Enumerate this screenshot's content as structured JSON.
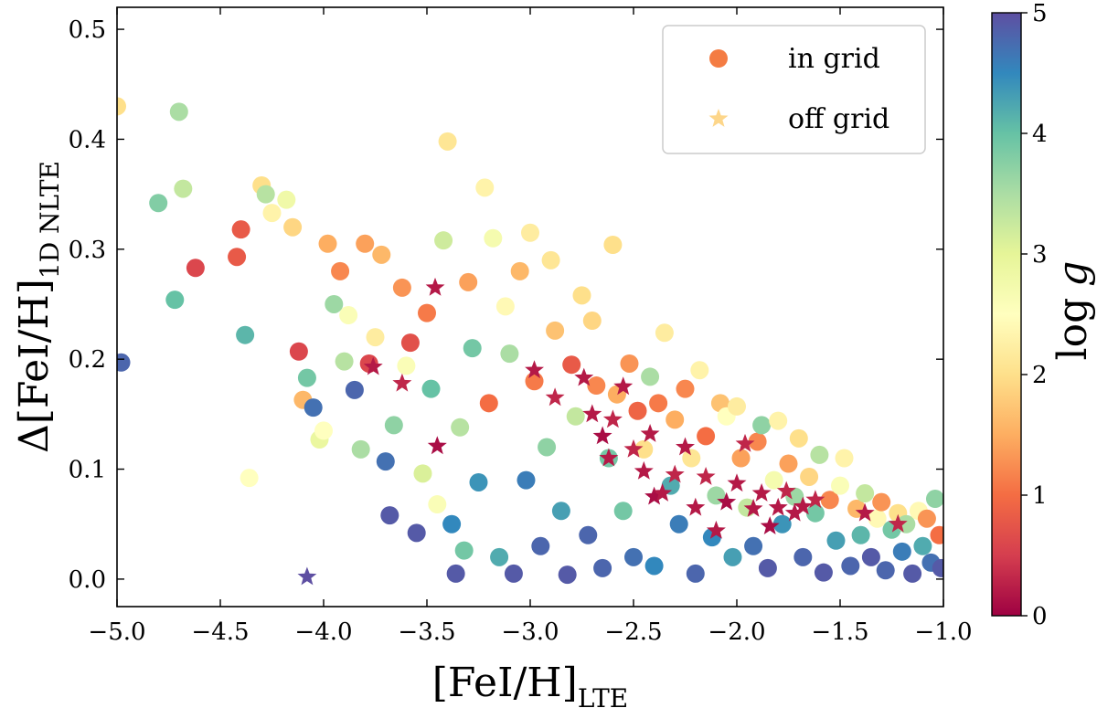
{
  "chart_data": {
    "type": "scatter",
    "title": "",
    "xlabel": {
      "main": "[FeI/H]",
      "sub": "LTE"
    },
    "ylabel": {
      "prefix": "Δ",
      "main": "[FeI/H]",
      "sub": "1D NLTE"
    },
    "xlim": [
      -5.0,
      -1.0
    ],
    "ylim": [
      -0.025,
      0.52
    ],
    "xticks": [
      -5.0,
      -4.5,
      -4.0,
      -3.5,
      -3.0,
      -2.5,
      -2.0,
      -1.5,
      -1.0
    ],
    "xtick_labels": [
      "−5.0",
      "−4.5",
      "−4.0",
      "−3.5",
      "−3.0",
      "−2.5",
      "−2.0",
      "−1.5",
      "−1.0"
    ],
    "yticks": [
      0.0,
      0.1,
      0.2,
      0.3,
      0.4,
      0.5
    ],
    "ytick_labels": [
      "0.0",
      "0.1",
      "0.2",
      "0.3",
      "0.4",
      "0.5"
    ],
    "grid": false,
    "legend": {
      "position": "top-right",
      "entries": [
        {
          "label": "in grid",
          "marker": "circle",
          "color": "#f47c43"
        },
        {
          "label": "off grid",
          "marker": "star",
          "color": "#fdd68a"
        }
      ]
    },
    "colorbar": {
      "label": "log g",
      "label_main": "log",
      "label_var": "g",
      "range": [
        0,
        5
      ],
      "ticks": [
        0,
        1,
        2,
        3,
        4,
        5
      ],
      "cmap": "Spectral",
      "stops": [
        "#9e0142",
        "#d53e4f",
        "#f46d43",
        "#fdae61",
        "#fee08b",
        "#ffffbf",
        "#e6f598",
        "#abdda4",
        "#66c2a5",
        "#3288bd",
        "#5e4fa2"
      ]
    },
    "series": [
      {
        "name": "in grid",
        "marker": "circle",
        "points": [
          [
            -5.0,
            0.43,
            2.0
          ],
          [
            -4.98,
            0.197,
            4.8
          ],
          [
            -4.8,
            0.342,
            3.8
          ],
          [
            -4.72,
            0.254,
            4.0
          ],
          [
            -4.7,
            0.425,
            3.5
          ],
          [
            -4.68,
            0.355,
            3.3
          ],
          [
            -4.62,
            0.283,
            0.6
          ],
          [
            -4.42,
            0.293,
            0.8
          ],
          [
            -4.4,
            0.318,
            0.8
          ],
          [
            -4.38,
            0.222,
            4.1
          ],
          [
            -4.36,
            0.092,
            2.5
          ],
          [
            -4.3,
            0.358,
            2.0
          ],
          [
            -4.28,
            0.35,
            3.4
          ],
          [
            -4.25,
            0.333,
            2.3
          ],
          [
            -4.18,
            0.345,
            2.8
          ],
          [
            -4.15,
            0.32,
            1.9
          ],
          [
            -4.12,
            0.207,
            0.6
          ],
          [
            -4.1,
            0.163,
            1.6
          ],
          [
            -4.08,
            0.183,
            3.9
          ],
          [
            -4.05,
            0.156,
            4.7
          ],
          [
            -4.02,
            0.127,
            2.9
          ],
          [
            -4.0,
            0.135,
            2.5
          ],
          [
            -3.98,
            0.305,
            1.5
          ],
          [
            -3.95,
            0.25,
            3.6
          ],
          [
            -3.92,
            0.28,
            1.2
          ],
          [
            -3.9,
            0.198,
            3.4
          ],
          [
            -3.88,
            0.24,
            2.6
          ],
          [
            -3.85,
            0.172,
            4.8
          ],
          [
            -3.82,
            0.118,
            3.5
          ],
          [
            -3.8,
            0.305,
            1.4
          ],
          [
            -3.78,
            0.196,
            0.6
          ],
          [
            -3.75,
            0.22,
            2.2
          ],
          [
            -3.72,
            0.295,
            1.6
          ],
          [
            -3.7,
            0.107,
            4.7
          ],
          [
            -3.68,
            0.058,
            4.9
          ],
          [
            -3.66,
            0.14,
            3.7
          ],
          [
            -3.62,
            0.265,
            1.3
          ],
          [
            -3.6,
            0.194,
            2.6
          ],
          [
            -3.58,
            0.215,
            0.7
          ],
          [
            -3.55,
            0.042,
            4.9
          ],
          [
            -3.52,
            0.096,
            3.1
          ],
          [
            -3.5,
            0.242,
            1.1
          ],
          [
            -3.48,
            0.173,
            4.0
          ],
          [
            -3.45,
            0.068,
            2.6
          ],
          [
            -3.42,
            0.308,
            3.2
          ],
          [
            -3.4,
            0.398,
            2.1
          ],
          [
            -3.38,
            0.05,
            4.5
          ],
          [
            -3.36,
            0.005,
            4.9
          ],
          [
            -3.34,
            0.138,
            3.4
          ],
          [
            -3.32,
            0.026,
            3.9
          ],
          [
            -3.3,
            0.27,
            1.4
          ],
          [
            -3.28,
            0.21,
            3.9
          ],
          [
            -3.25,
            0.088,
            4.4
          ],
          [
            -3.22,
            0.356,
            2.3
          ],
          [
            -3.2,
            0.16,
            1.0
          ],
          [
            -3.18,
            0.31,
            2.7
          ],
          [
            -3.15,
            0.02,
            4.2
          ],
          [
            -3.12,
            0.248,
            2.4
          ],
          [
            -3.1,
            0.205,
            3.5
          ],
          [
            -3.08,
            0.005,
            4.9
          ],
          [
            -3.05,
            0.28,
            1.6
          ],
          [
            -3.02,
            0.09,
            4.6
          ],
          [
            -3.0,
            0.315,
            2.2
          ],
          [
            -2.98,
            0.18,
            1.1
          ],
          [
            -2.95,
            0.03,
            4.8
          ],
          [
            -2.92,
            0.12,
            3.7
          ],
          [
            -2.9,
            0.29,
            2.1
          ],
          [
            -2.88,
            0.226,
            1.7
          ],
          [
            -2.85,
            0.062,
            4.3
          ],
          [
            -2.82,
            0.004,
            4.9
          ],
          [
            -2.8,
            0.195,
            0.8
          ],
          [
            -2.78,
            0.148,
            3.3
          ],
          [
            -2.75,
            0.258,
            2.0
          ],
          [
            -2.72,
            0.04,
            4.8
          ],
          [
            -2.7,
            0.235,
            1.9
          ],
          [
            -2.68,
            0.176,
            1.2
          ],
          [
            -2.65,
            0.01,
            4.8
          ],
          [
            -2.62,
            0.11,
            3.9
          ],
          [
            -2.6,
            0.304,
            2.0
          ],
          [
            -2.58,
            0.168,
            1.5
          ],
          [
            -2.55,
            0.062,
            3.9
          ],
          [
            -2.52,
            0.196,
            1.3
          ],
          [
            -2.5,
            0.02,
            4.7
          ],
          [
            -2.48,
            0.153,
            0.9
          ],
          [
            -2.45,
            0.118,
            2.0
          ],
          [
            -2.42,
            0.184,
            3.5
          ],
          [
            -2.4,
            0.012,
            4.5
          ],
          [
            -2.38,
            0.16,
            1.1
          ],
          [
            -2.35,
            0.224,
            2.2
          ],
          [
            -2.32,
            0.085,
            4.2
          ],
          [
            -2.3,
            0.145,
            1.5
          ],
          [
            -2.28,
            0.05,
            4.6
          ],
          [
            -2.25,
            0.173,
            1.2
          ],
          [
            -2.22,
            0.11,
            2.1
          ],
          [
            -2.2,
            0.005,
            4.8
          ],
          [
            -2.18,
            0.19,
            2.3
          ],
          [
            -2.15,
            0.13,
            1.0
          ],
          [
            -2.12,
            0.038,
            4.5
          ],
          [
            -2.1,
            0.076,
            3.6
          ],
          [
            -2.08,
            0.16,
            1.7
          ],
          [
            -2.05,
            0.148,
            2.5
          ],
          [
            -2.02,
            0.02,
            4.3
          ],
          [
            -2.0,
            0.157,
            2.2
          ],
          [
            -1.98,
            0.11,
            1.4
          ],
          [
            -1.95,
            0.065,
            3.3
          ],
          [
            -1.92,
            0.03,
            4.7
          ],
          [
            -1.9,
            0.125,
            1.2
          ],
          [
            -1.88,
            0.14,
            3.7
          ],
          [
            -1.85,
            0.01,
            4.9
          ],
          [
            -1.82,
            0.09,
            2.7
          ],
          [
            -1.8,
            0.144,
            2.3
          ],
          [
            -1.78,
            0.05,
            4.4
          ],
          [
            -1.75,
            0.105,
            1.4
          ],
          [
            -1.72,
            0.075,
            3.6
          ],
          [
            -1.7,
            0.128,
            2.0
          ],
          [
            -1.68,
            0.02,
            4.8
          ],
          [
            -1.65,
            0.093,
            1.9
          ],
          [
            -1.62,
            0.06,
            3.9
          ],
          [
            -1.6,
            0.113,
            3.4
          ],
          [
            -1.58,
            0.006,
            4.9
          ],
          [
            -1.55,
            0.072,
            1.2
          ],
          [
            -1.52,
            0.035,
            4.3
          ],
          [
            -1.5,
            0.085,
            2.6
          ],
          [
            -1.48,
            0.11,
            2.3
          ],
          [
            -1.45,
            0.012,
            4.8
          ],
          [
            -1.42,
            0.064,
            1.6
          ],
          [
            -1.4,
            0.04,
            4.1
          ],
          [
            -1.38,
            0.078,
            3.3
          ],
          [
            -1.35,
            0.02,
            4.9
          ],
          [
            -1.32,
            0.055,
            2.4
          ],
          [
            -1.3,
            0.07,
            1.3
          ],
          [
            -1.28,
            0.008,
            4.8
          ],
          [
            -1.25,
            0.045,
            3.9
          ],
          [
            -1.22,
            0.06,
            2.0
          ],
          [
            -1.2,
            0.025,
            4.6
          ],
          [
            -1.18,
            0.05,
            3.5
          ],
          [
            -1.15,
            0.005,
            4.9
          ],
          [
            -1.12,
            0.062,
            2.4
          ],
          [
            -1.1,
            0.03,
            4.2
          ],
          [
            -1.08,
            0.055,
            1.3
          ],
          [
            -1.06,
            0.015,
            4.7
          ],
          [
            -1.04,
            0.073,
            3.7
          ],
          [
            -1.02,
            0.04,
            1.0
          ],
          [
            -1.01,
            0.01,
            4.9
          ]
        ]
      },
      {
        "name": "off grid",
        "marker": "star",
        "points": [
          [
            -4.08,
            0.002,
            5.0
          ],
          [
            -3.76,
            0.193,
            0.2
          ],
          [
            -3.62,
            0.178,
            0.3
          ],
          [
            -3.46,
            0.265,
            0.2
          ],
          [
            -3.45,
            0.121,
            0.1
          ],
          [
            -2.98,
            0.19,
            0.2
          ],
          [
            -2.88,
            0.165,
            0.3
          ],
          [
            -2.74,
            0.183,
            0.2
          ],
          [
            -2.7,
            0.15,
            0.2
          ],
          [
            -2.65,
            0.13,
            0.1
          ],
          [
            -2.62,
            0.11,
            0.2
          ],
          [
            -2.6,
            0.145,
            0.3
          ],
          [
            -2.55,
            0.175,
            0.2
          ],
          [
            -2.5,
            0.118,
            0.3
          ],
          [
            -2.45,
            0.098,
            0.2
          ],
          [
            -2.42,
            0.132,
            0.2
          ],
          [
            -2.4,
            0.075,
            0.1
          ],
          [
            -2.36,
            0.078,
            0.2
          ],
          [
            -2.3,
            0.095,
            0.3
          ],
          [
            -2.25,
            0.12,
            0.2
          ],
          [
            -2.2,
            0.065,
            0.2
          ],
          [
            -2.15,
            0.093,
            0.3
          ],
          [
            -2.1,
            0.044,
            0.2
          ],
          [
            -2.05,
            0.07,
            0.1
          ],
          [
            -2.0,
            0.087,
            0.2
          ],
          [
            -1.96,
            0.123,
            0.3
          ],
          [
            -1.92,
            0.064,
            0.2
          ],
          [
            -1.88,
            0.078,
            0.2
          ],
          [
            -1.84,
            0.048,
            0.1
          ],
          [
            -1.8,
            0.065,
            0.2
          ],
          [
            -1.76,
            0.08,
            0.3
          ],
          [
            -1.72,
            0.06,
            0.2
          ],
          [
            -1.68,
            0.066,
            0.2
          ],
          [
            -1.62,
            0.072,
            0.3
          ],
          [
            -1.38,
            0.06,
            0.2
          ],
          [
            -1.22,
            0.05,
            0.3
          ]
        ]
      }
    ]
  }
}
